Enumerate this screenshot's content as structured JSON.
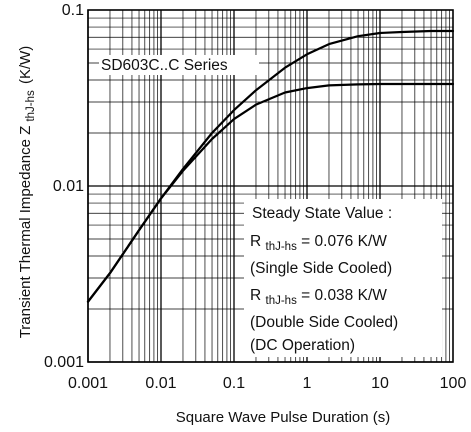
{
  "chart_data": {
    "type": "line",
    "scale": {
      "x": "log",
      "y": "log"
    },
    "xlim": [
      0.001,
      100
    ],
    "ylim": [
      0.001,
      0.1
    ],
    "grid": true,
    "x_ticks": [
      "0.001",
      "0.01",
      "0.1",
      "1",
      "10",
      "100"
    ],
    "y_ticks": [
      "0.001",
      "0.01",
      "0.1"
    ],
    "xlabel": "Square Wave Pulse Duration (s)",
    "ylabel_main": "Transient Thermal Impedance Z",
    "ylabel_sub": "thJ-hs",
    "ylabel_unit": "(K/W)",
    "series_label": "SD603C..C Series",
    "series": [
      {
        "name": "Single Side Cooled",
        "x": [
          0.001,
          0.002,
          0.005,
          0.01,
          0.02,
          0.05,
          0.1,
          0.2,
          0.5,
          1,
          2,
          5,
          10,
          20,
          50,
          100
        ],
        "y": [
          0.0022,
          0.0032,
          0.0056,
          0.0085,
          0.0125,
          0.02,
          0.027,
          0.035,
          0.047,
          0.056,
          0.064,
          0.071,
          0.074,
          0.075,
          0.076,
          0.076
        ]
      },
      {
        "name": "Double Side Cooled",
        "x": [
          0.001,
          0.002,
          0.005,
          0.01,
          0.02,
          0.05,
          0.1,
          0.2,
          0.5,
          1,
          2,
          5,
          10,
          20,
          50,
          100
        ],
        "y": [
          0.0022,
          0.0032,
          0.0056,
          0.0085,
          0.0122,
          0.0185,
          0.024,
          0.029,
          0.034,
          0.036,
          0.0373,
          0.0378,
          0.038,
          0.038,
          0.038,
          0.038
        ]
      }
    ],
    "annotation": {
      "title": "Steady State Value :",
      "r1_sym": "R",
      "r1_sub": "thJ-hs",
      "r1_val": "= 0.076 K/W",
      "r1_note": "(Single Side Cooled)",
      "r2_sym": "R",
      "r2_sub": "thJ-hs",
      "r2_val": "= 0.038 K/W",
      "r2_note": "(Double Side Cooled)",
      "r2_note2": "(DC Operation)"
    }
  }
}
